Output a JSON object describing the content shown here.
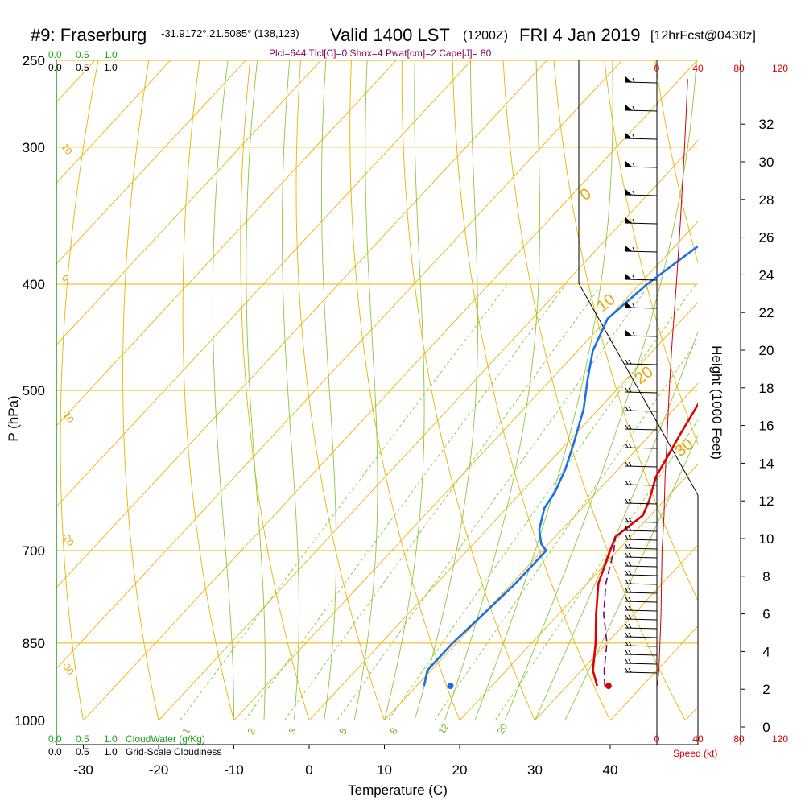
{
  "header": {
    "station": "#9: Fraserburg",
    "coords": "-31.9172°,21.5085° (138,123)",
    "valid": "Valid 1400 LST",
    "zulu": "(1200Z)",
    "date": "FRI 4 Jan 2019",
    "forecast": "[12hrFcst@0430z]",
    "params": "Plcl=644 Tlcl[C]=0 Shox=4 Pwat[cm]=2 Cape[J]= 80"
  },
  "scales": {
    "cloudwater_top": [
      "0.0",
      "0.5",
      "1.0"
    ],
    "cloudiness_top": [
      "0.0",
      "0.5",
      "1.0"
    ],
    "cloudwater_bottom": [
      "0.0",
      "0.5",
      "1.0"
    ],
    "cloudwater_label": "CloudWater (g/Kg)",
    "cloudiness_bottom": [
      "0.0",
      "0.5",
      "1.0"
    ],
    "cloudiness_label": "Grid-Scale Cloudiness",
    "speed_label": "Speed (kt)"
  },
  "chart_data": {
    "type": "line",
    "title": "Skew-T log-P sounding",
    "xlabel": "Temperature (C)",
    "ylabel": "P (hPa)",
    "y2label": "Height (1000 Feet)",
    "x_ticks": [
      -30,
      -20,
      -10,
      0,
      10,
      20,
      30,
      40
    ],
    "pressure_ticks": [
      250,
      300,
      400,
      500,
      700,
      850,
      1000
    ],
    "height_ticks": [
      0,
      2,
      4,
      6,
      8,
      10,
      12,
      14,
      16,
      18,
      20,
      22,
      24,
      26,
      28,
      30,
      32
    ],
    "speed_ticks": [
      0,
      40,
      80,
      120
    ],
    "dry_adiabat_labels": [
      "-20",
      "-10",
      "0",
      "10",
      "20",
      "30"
    ],
    "temp_line_labels": [
      "-30",
      "-20",
      "-10",
      "0",
      "10",
      "20",
      "30"
    ],
    "mixing_ratio_labels": [
      "1",
      "2",
      "3",
      "5",
      "8",
      "12",
      "20"
    ],
    "series": [
      {
        "name": "Temperature",
        "color": "#e00000",
        "points": [
          [
            1.5,
            260
          ],
          [
            5,
            300
          ],
          [
            7,
            350
          ],
          [
            9,
            400
          ],
          [
            10.5,
            450
          ],
          [
            12,
            500
          ],
          [
            14,
            550
          ],
          [
            16,
            600
          ],
          [
            18,
            630
          ],
          [
            19,
            650
          ],
          [
            18,
            680
          ],
          [
            19,
            700
          ],
          [
            21.5,
            750
          ],
          [
            25,
            800
          ],
          [
            28.5,
            850
          ],
          [
            31.5,
            900
          ],
          [
            34,
            930
          ]
        ]
      },
      {
        "name": "Dewpoint",
        "color": "#1a70e6",
        "points": [
          [
            -6,
            260
          ],
          [
            -5,
            300
          ],
          [
            -4.5,
            340
          ],
          [
            -7,
            370
          ],
          [
            -9,
            400
          ],
          [
            -10,
            430
          ],
          [
            -8,
            460
          ],
          [
            -5,
            490
          ],
          [
            -2,
            520
          ],
          [
            1,
            560
          ],
          [
            3,
            590
          ],
          [
            4.5,
            620
          ],
          [
            5,
            640
          ],
          [
            7,
            670
          ],
          [
            9,
            690
          ],
          [
            10.5,
            700
          ],
          [
            10.5,
            750
          ],
          [
            10,
            800
          ],
          [
            9.5,
            850
          ],
          [
            9.5,
            900
          ],
          [
            11,
            930
          ]
        ]
      },
      {
        "name": "Parcel",
        "color": "#7a0070",
        "points": [
          [
            35,
            930
          ],
          [
            33,
            900
          ],
          [
            30,
            850
          ],
          [
            26,
            800
          ],
          [
            22.5,
            750
          ],
          [
            19.5,
            700
          ],
          [
            18,
            680
          ]
        ]
      }
    ],
    "surface_temperature": {
      "value": 35.5,
      "pressure": 930
    },
    "surface_dewpoint": {
      "value": 14.5,
      "pressure": 930
    },
    "wind_speed_profile": {
      "points": [
        [
          0.5,
          930
        ],
        [
          2,
          900
        ],
        [
          3,
          850
        ],
        [
          4,
          800
        ],
        [
          4.5,
          750
        ],
        [
          5,
          700
        ],
        [
          7,
          650
        ],
        [
          8,
          600
        ],
        [
          10,
          550
        ],
        [
          12,
          500
        ],
        [
          15,
          450
        ],
        [
          19,
          400
        ],
        [
          23,
          350
        ],
        [
          27,
          300
        ],
        [
          30,
          260
        ]
      ]
    },
    "grid": true,
    "legend": "none"
  }
}
